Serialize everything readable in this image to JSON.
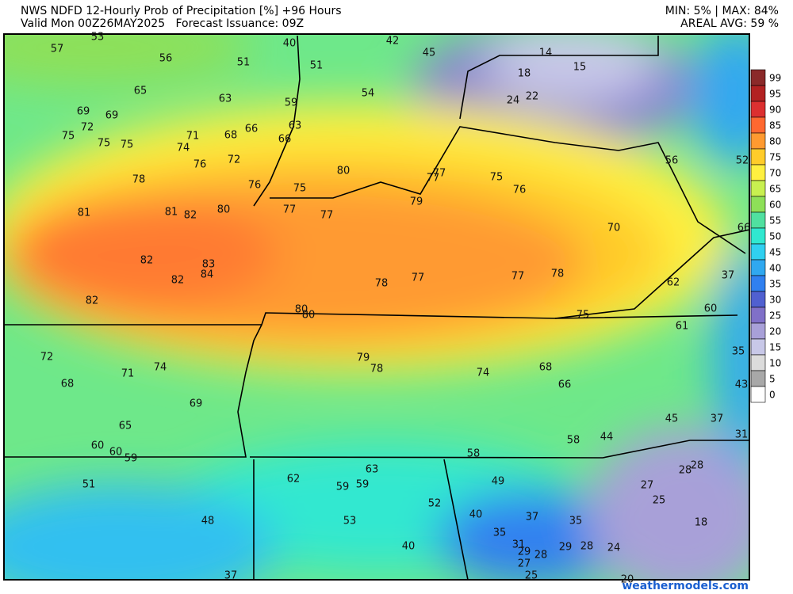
{
  "header": {
    "title": "NWS NDFD 12-Hourly Prob of Precipitation [%] +96 Hours",
    "subtitle": "Valid Mon 00Z26MAY2025   Forecast Issuance: 09Z",
    "stats": "MIN: 5% | MAX: 84%",
    "average": "AREAL AVG: 59 %"
  },
  "map": {
    "labels": [
      57,
      53,
      56,
      51,
      40,
      42,
      45,
      14,
      15,
      18,
      51,
      65,
      63,
      59,
      54,
      24,
      22,
      69,
      69,
      72,
      75,
      75,
      75,
      71,
      68,
      66,
      63,
      66,
      74,
      72,
      76,
      80,
      77,
      77,
      75,
      56,
      52,
      78,
      76,
      75,
      76,
      77,
      77,
      79,
      81,
      81,
      82,
      80,
      70,
      66,
      82,
      83,
      84,
      82,
      78,
      77,
      77,
      78,
      62,
      37,
      82,
      80,
      80,
      75,
      60,
      61,
      72,
      79,
      78,
      74,
      68,
      35,
      71,
      74,
      68,
      66,
      43,
      69,
      45,
      37,
      65,
      58,
      44,
      31,
      60,
      60,
      59,
      58,
      63,
      28,
      28,
      62,
      59,
      59,
      49,
      51,
      27,
      25,
      52,
      40,
      37,
      35,
      18,
      48,
      53,
      35,
      31,
      40,
      29,
      28,
      29,
      28,
      24,
      27,
      25,
      37,
      20
    ]
  },
  "colorbar": {
    "ticks": [
      {
        "value": 99,
        "color": "#8b2a2a"
      },
      {
        "value": 95,
        "color": "#b22222"
      },
      {
        "value": 90,
        "color": "#dc3030"
      },
      {
        "value": 85,
        "color": "#ff6830"
      },
      {
        "value": 80,
        "color": "#ff9a30"
      },
      {
        "value": 75,
        "color": "#ffcc2a"
      },
      {
        "value": 70,
        "color": "#fff040"
      },
      {
        "value": 65,
        "color": "#c8f050"
      },
      {
        "value": 60,
        "color": "#8ee058"
      },
      {
        "value": 55,
        "color": "#50e0a0"
      },
      {
        "value": 50,
        "color": "#30e8d0"
      },
      {
        "value": 45,
        "color": "#30d0f0"
      },
      {
        "value": 40,
        "color": "#30a8f0"
      },
      {
        "value": 35,
        "color": "#3080f0"
      },
      {
        "value": 30,
        "color": "#5060d0"
      },
      {
        "value": 25,
        "color": "#8070c8"
      },
      {
        "value": 20,
        "color": "#a8a0d8"
      },
      {
        "value": 15,
        "color": "#c8c8e8"
      },
      {
        "value": 10,
        "color": "#dcdcdc"
      },
      {
        "value": 5,
        "color": "#a8a8a8"
      },
      {
        "value": 0,
        "color": "#ffffff"
      }
    ]
  },
  "footer": {
    "watermark": "weathermodels.com"
  }
}
